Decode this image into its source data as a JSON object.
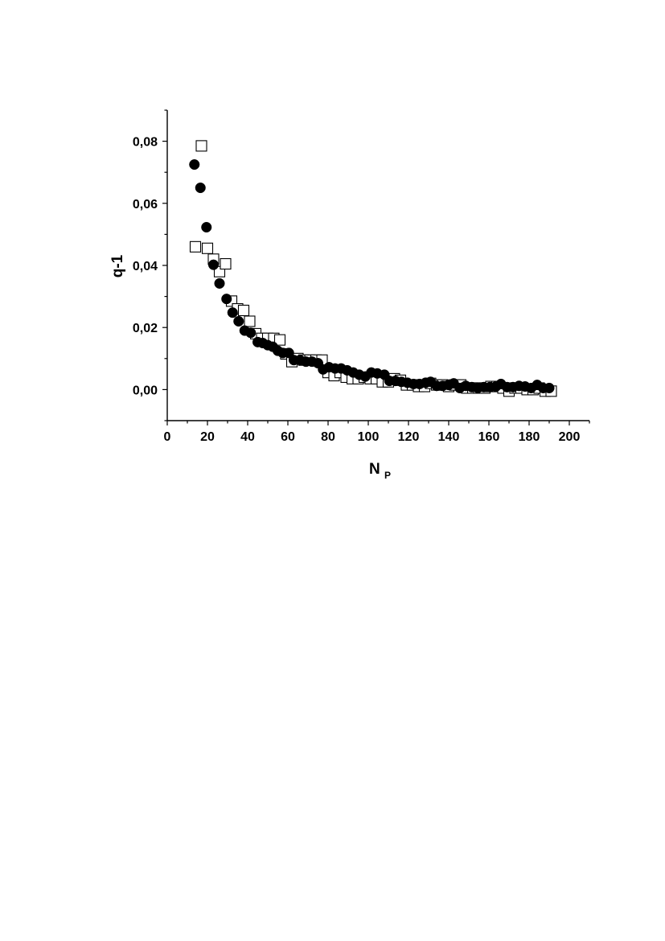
{
  "chart_data": {
    "type": "scatter",
    "xlabel": "N",
    "xlabel_subscript": "P",
    "ylabel": "q-1",
    "xlim": [
      0,
      210
    ],
    "ylim": [
      -0.01,
      0.09
    ],
    "xticks": [
      0,
      20,
      40,
      60,
      80,
      100,
      120,
      140,
      160,
      180,
      200
    ],
    "xtick_labels": [
      "0",
      "20",
      "40",
      "60",
      "80",
      "100",
      "120",
      "140",
      "160",
      "180",
      "200"
    ],
    "yticks": [
      0.0,
      0.02,
      0.04,
      0.06,
      0.08
    ],
    "ytick_labels": [
      "0,00",
      "0,02",
      "0,04",
      "0,06",
      "0,08"
    ],
    "grid": false,
    "legend": "none",
    "series": [
      {
        "marker": "open-square",
        "color": "#000000",
        "points": [
          [
            14,
            0.046
          ],
          [
            17,
            0.0785
          ],
          [
            20,
            0.0455
          ],
          [
            23,
            0.042
          ],
          [
            26,
            0.038
          ],
          [
            29,
            0.0405
          ],
          [
            32,
            0.0285
          ],
          [
            35,
            0.026
          ],
          [
            38,
            0.0255
          ],
          [
            41,
            0.022
          ],
          [
            44,
            0.018
          ],
          [
            47,
            0.0165
          ],
          [
            50,
            0.0165
          ],
          [
            53,
            0.0165
          ],
          [
            56,
            0.016
          ],
          [
            59,
            0.0115
          ],
          [
            62,
            0.009
          ],
          [
            65,
            0.01
          ],
          [
            68,
            0.0095
          ],
          [
            71,
            0.0095
          ],
          [
            74,
            0.0095
          ],
          [
            77,
            0.0095
          ],
          [
            80,
            0.0055
          ],
          [
            83,
            0.0045
          ],
          [
            86,
            0.0055
          ],
          [
            89,
            0.004
          ],
          [
            92,
            0.0035
          ],
          [
            95,
            0.0035
          ],
          [
            98,
            0.004
          ],
          [
            101,
            0.0035
          ],
          [
            104,
            0.0035
          ],
          [
            107,
            0.0025
          ],
          [
            110,
            0.0025
          ],
          [
            113,
            0.0035
          ],
          [
            116,
            0.003
          ],
          [
            119,
            0.0015
          ],
          [
            122,
            0.0015
          ],
          [
            125,
            0.001
          ],
          [
            128,
            0.001
          ],
          [
            131,
            0.002
          ],
          [
            134,
            0.0015
          ],
          [
            137,
            0.0015
          ],
          [
            140,
            0.001
          ],
          [
            143,
            0.0015
          ],
          [
            146,
            0.0015
          ],
          [
            149,
            0.0005
          ],
          [
            152,
            0.0005
          ],
          [
            155,
            0.0005
          ],
          [
            158,
            0.0005
          ],
          [
            161,
            0.001
          ],
          [
            164,
            0.001
          ],
          [
            167,
            0.0005
          ],
          [
            170,
            -0.0005
          ],
          [
            173,
            0.0005
          ],
          [
            176,
            0.0005
          ],
          [
            179,
            0.0
          ],
          [
            182,
            0.0
          ],
          [
            185,
            0.0005
          ],
          [
            188,
            -0.0005
          ],
          [
            191,
            -0.0005
          ]
        ]
      },
      {
        "marker": "filled-circle",
        "color": "#000000",
        "points": [
          [
            13.5,
            0.0725
          ],
          [
            16.5,
            0.065
          ],
          [
            19.5,
            0.0523
          ],
          [
            23,
            0.0402
          ],
          [
            26,
            0.0342
          ],
          [
            29.5,
            0.0292
          ],
          [
            32.5,
            0.0248
          ],
          [
            35.5,
            0.022
          ],
          [
            38.5,
            0.019
          ],
          [
            41.5,
            0.0183
          ],
          [
            45,
            0.0153
          ],
          [
            47.5,
            0.015
          ],
          [
            50,
            0.0143
          ],
          [
            52.5,
            0.0138
          ],
          [
            55,
            0.0125
          ],
          [
            57.5,
            0.0118
          ],
          [
            60.5,
            0.0118
          ],
          [
            63,
            0.0095
          ],
          [
            66,
            0.0095
          ],
          [
            69,
            0.009
          ],
          [
            72,
            0.009
          ],
          [
            75,
            0.0085
          ],
          [
            77.5,
            0.0065
          ],
          [
            80.5,
            0.0072
          ],
          [
            83.5,
            0.0068
          ],
          [
            86.5,
            0.0068
          ],
          [
            89.5,
            0.0062
          ],
          [
            92.5,
            0.0055
          ],
          [
            95.5,
            0.0048
          ],
          [
            98.5,
            0.0042
          ],
          [
            101.5,
            0.0055
          ],
          [
            104.5,
            0.0052
          ],
          [
            108,
            0.0048
          ],
          [
            110.5,
            0.0028
          ],
          [
            113.5,
            0.0028
          ],
          [
            116.5,
            0.0025
          ],
          [
            119.5,
            0.0022
          ],
          [
            122.5,
            0.0018
          ],
          [
            125.5,
            0.0018
          ],
          [
            128.5,
            0.0022
          ],
          [
            131,
            0.0025
          ],
          [
            134,
            0.0012
          ],
          [
            137,
            0.0012
          ],
          [
            140,
            0.0015
          ],
          [
            142.5,
            0.002
          ],
          [
            145.5,
            0.0005
          ],
          [
            148.5,
            0.0012
          ],
          [
            151.5,
            0.0008
          ],
          [
            154.5,
            0.0005
          ],
          [
            157.5,
            0.0008
          ],
          [
            160.5,
            0.0008
          ],
          [
            163.5,
            0.001
          ],
          [
            166,
            0.0018
          ],
          [
            169,
            0.0008
          ],
          [
            172,
            0.0008
          ],
          [
            175,
            0.0012
          ],
          [
            178,
            0.001
          ],
          [
            181,
            0.0005
          ],
          [
            184,
            0.0015
          ],
          [
            187,
            0.0005
          ],
          [
            190,
            0.0005
          ]
        ]
      }
    ]
  }
}
